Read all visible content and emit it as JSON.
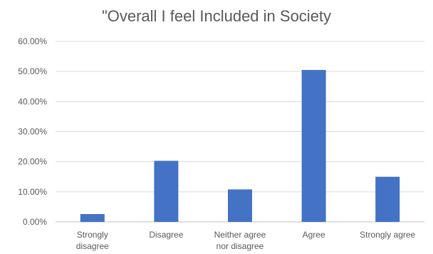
{
  "chart_data": {
    "type": "bar",
    "title": "\"Overall I feel Included in Society",
    "xlabel": "",
    "ylabel": "",
    "categories": [
      [
        "Strongly",
        "disagree"
      ],
      [
        "Disagree"
      ],
      [
        "Neither agree",
        "nor disagree"
      ],
      [
        "Agree"
      ],
      [
        "Strongly agree"
      ]
    ],
    "values": [
      0.026,
      0.203,
      0.108,
      0.505,
      0.15
    ],
    "ylim": [
      0,
      0.6
    ],
    "yticks": [
      0,
      0.1,
      0.2,
      0.3,
      0.4,
      0.5,
      0.6
    ],
    "ytick_labels": [
      "0.00%",
      "10.00%",
      "20.00%",
      "30.00%",
      "40.00%",
      "50.00%",
      "60.00%"
    ],
    "grid": true,
    "legend": "none",
    "colors": {
      "bar": "#4472C4",
      "grid": "#D9D9D9",
      "axis": "#BFBFBF",
      "text": "#595959"
    }
  }
}
